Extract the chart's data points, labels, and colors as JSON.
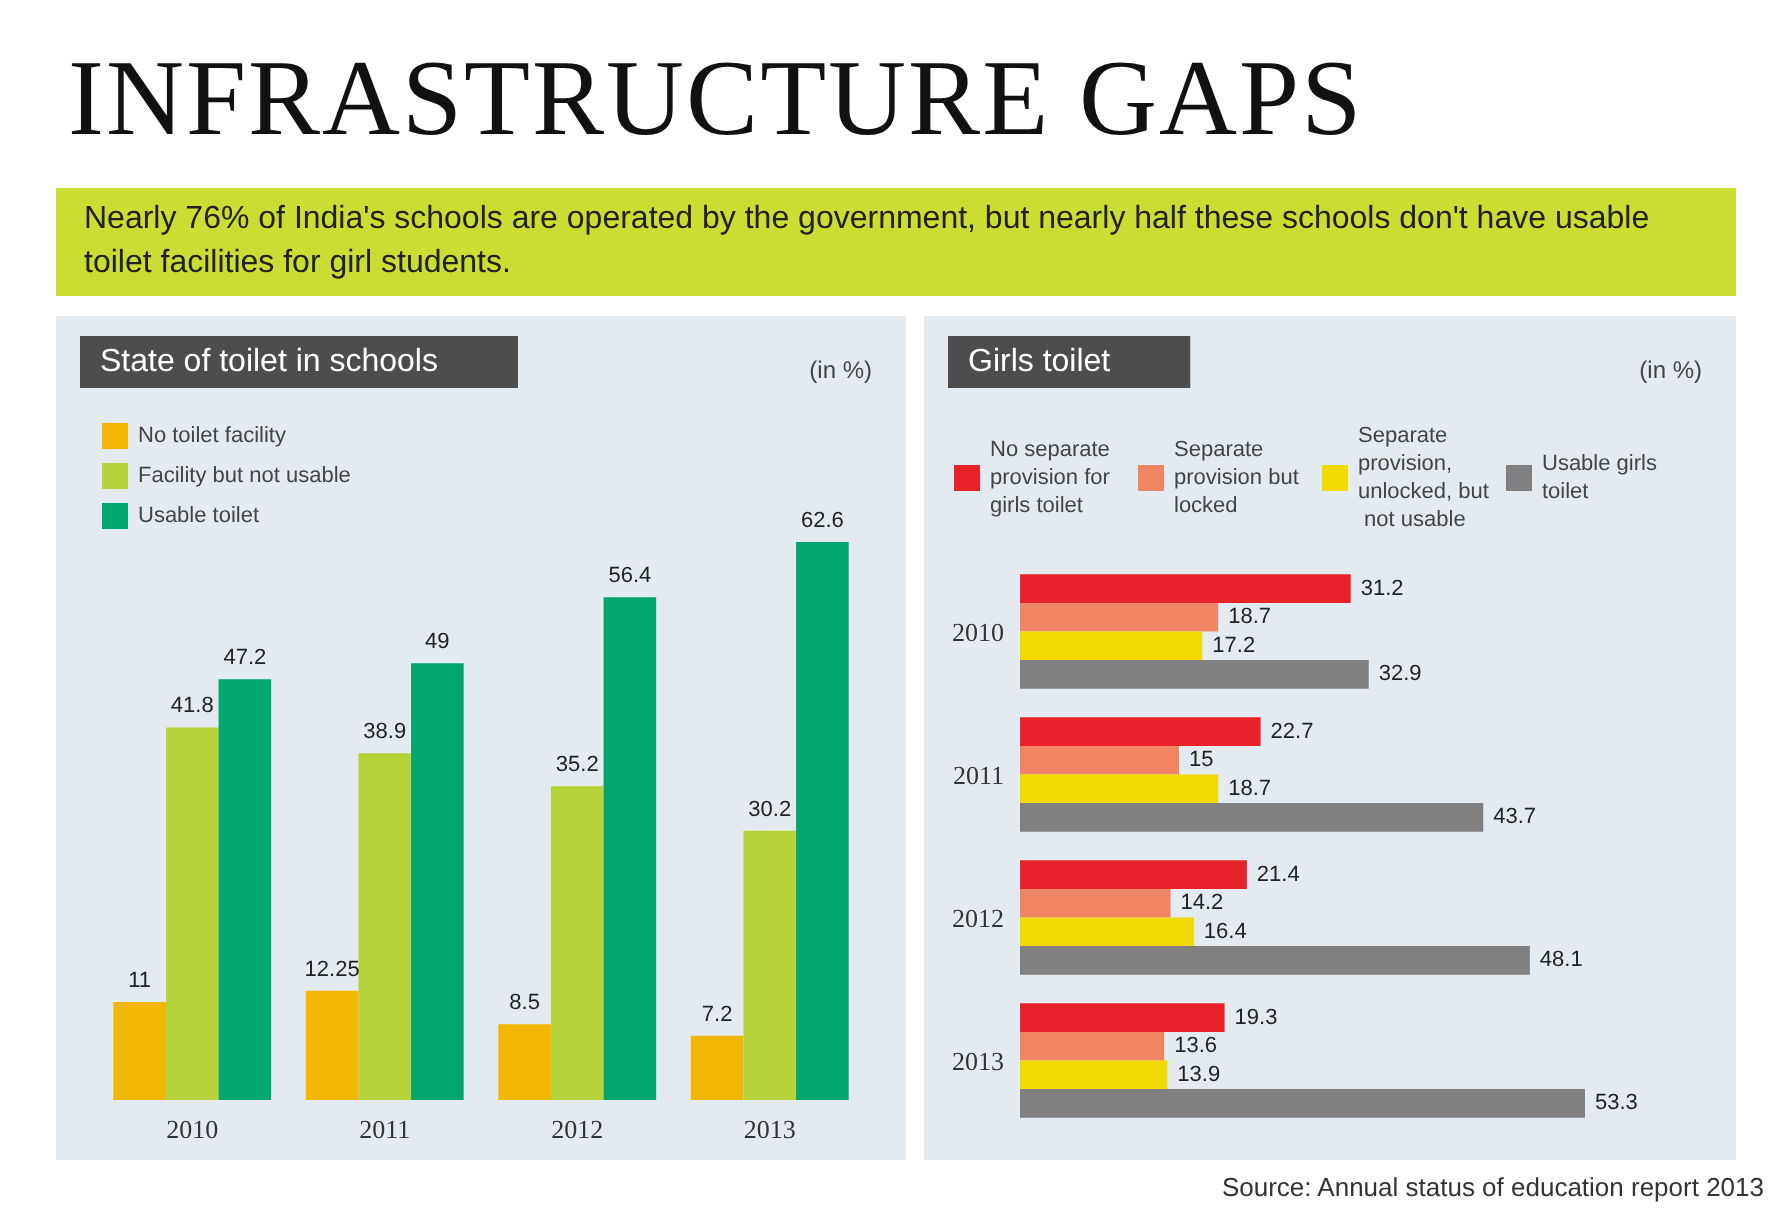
{
  "chart_data": [
    {
      "type": "other",
      "title": "INFRASTRUCTURE GAPS",
      "subtitle": "Nearly 76% of India's schools are operated by the government, but nearly half these schools don't have usable toilet facilities for girl students.",
      "annotations": [
        "Source: Annual status of education report 2013"
      ]
    },
    {
      "type": "bar",
      "title": "State of toilet in schools",
      "ylabel": "(in %)",
      "categories": [
        "2010",
        "2011",
        "2012",
        "2013"
      ],
      "series": [
        {
          "name": "No toilet facility",
          "color": "#f2b705",
          "values": [
            11,
            12.25,
            8.5,
            7.2
          ]
        },
        {
          "name": "Facility but not usable",
          "color": "#b6d43a",
          "values": [
            41.8,
            38.9,
            35.2,
            30.2
          ]
        },
        {
          "name": "Usable toilet",
          "color": "#00a76f",
          "values": [
            47.2,
            49,
            56.4,
            62.6
          ]
        }
      ],
      "data_labels": true,
      "legend": "top left"
    },
    {
      "type": "bar",
      "orientation": "horizontal",
      "title": "Girls toilet",
      "xlabel": "(in %)",
      "categories": [
        "2010",
        "2011",
        "2012",
        "2013"
      ],
      "series": [
        {
          "name": "No separate provision for girls toilet",
          "color": "#e8222a",
          "values": [
            31.2,
            22.7,
            21.4,
            19.3
          ]
        },
        {
          "name": "Separate provision but locked",
          "color": "#f08563",
          "values": [
            18.7,
            15,
            14.2,
            13.6
          ]
        },
        {
          "name": "Separate provision, unlocked, but not usable",
          "color": "#f2d900",
          "values": [
            17.2,
            18.7,
            16.4,
            13.9
          ]
        },
        {
          "name": "Usable girls toilet",
          "color": "#808080",
          "values": [
            32.9,
            43.7,
            48.1,
            53.3
          ]
        }
      ],
      "data_labels": true,
      "legend": "top"
    }
  ]
}
